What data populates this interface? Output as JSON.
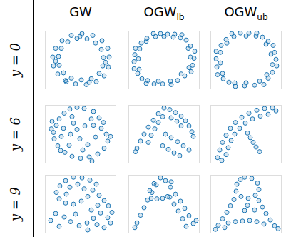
{
  "columns": [
    {
      "text": "GW"
    },
    {
      "text": "OGW",
      "subscript": "lb"
    },
    {
      "text": "OGW",
      "subscript": "ub"
    }
  ],
  "rows": [
    "y = 0",
    "y = 6",
    "y = 9"
  ],
  "chart_data": [
    {
      "type": "scatter",
      "color": "#1f77b4",
      "marker": "circle",
      "grid": false,
      "tick_labels": false,
      "xlim": [
        0,
        10
      ],
      "ylim": [
        0,
        10
      ],
      "x": [
        9.0,
        8.8,
        8.0,
        6.7,
        5.2,
        3.7,
        2.4,
        1.5,
        1.1,
        1.2,
        1.8,
        2.9,
        4.3,
        5.8,
        7.2,
        8.3,
        8.9,
        8.2,
        7.9,
        7.1,
        5.9,
        4.5,
        3.2,
        2.3,
        1.9,
        2.0,
        2.6,
        3.7,
        5.1,
        6.5,
        7.6,
        8.1,
        4.9,
        1.5,
        8.5,
        6.2,
        3.0
      ],
      "values": [
        5.5,
        7.0,
        8.3,
        9.2,
        9.5,
        9.2,
        8.3,
        7.0,
        5.5,
        4.0,
        2.6,
        1.5,
        0.9,
        0.8,
        1.3,
        2.3,
        3.8,
        5.4,
        6.8,
        7.9,
        8.6,
        8.7,
        8.1,
        7.0,
        5.6,
        4.1,
        2.8,
        1.9,
        1.6,
        1.8,
        2.7,
        4.0,
        9.0,
        4.8,
        4.6,
        1.2,
        1.3
      ]
    },
    {
      "type": "scatter",
      "color": "#1f77b4",
      "marker": "circle",
      "grid": false,
      "tick_labels": false,
      "xlim": [
        0,
        10
      ],
      "ylim": [
        0,
        10
      ],
      "x": [
        3.5,
        4.5,
        5.5,
        6.5,
        7.5,
        8.1,
        8.7,
        9.3,
        9.2,
        9.0,
        8.8,
        7.9,
        6.9,
        6.0,
        4.8,
        3.6,
        2.5,
        1.9,
        1.3,
        0.8,
        0.8,
        0.9,
        1.0,
        1.8,
        2.6,
        3.8,
        5.0,
        6.3,
        7.3,
        8.4,
        8.7,
        8.5,
        7.4,
        5.9,
        4.2,
        2.7,
        1.5,
        1.4,
        1.6,
        2.5
      ],
      "values": [
        9.5,
        9.5,
        9.4,
        9.4,
        9.3,
        8.4,
        7.4,
        6.5,
        5.3,
        4.1,
        3.0,
        2.3,
        1.5,
        0.8,
        0.9,
        0.9,
        1.0,
        1.8,
        2.7,
        3.5,
        4.7,
        5.9,
        7.0,
        7.9,
        8.7,
        9.0,
        9.0,
        8.9,
        8.8,
        7.0,
        5.5,
        3.7,
        2.6,
        1.4,
        1.4,
        1.5,
        3.4,
        5.2,
        6.9,
        8.2
      ]
    },
    {
      "type": "scatter",
      "color": "#1f77b4",
      "marker": "circle",
      "grid": false,
      "tick_labels": false,
      "xlim": [
        0,
        10
      ],
      "ylim": [
        0,
        10
      ],
      "x": [
        3.0,
        4.2,
        5.4,
        6.5,
        7.3,
        8.1,
        8.8,
        9.0,
        9.2,
        9.3,
        8.7,
        8.1,
        7.5,
        6.2,
        4.8,
        3.5,
        2.6,
        1.8,
        1.0,
        0.9,
        0.8,
        0.8,
        1.5,
        2.2,
        3.3,
        5.0,
        6.4,
        7.8,
        8.5,
        8.7,
        7.9,
        6.9,
        5.0,
        3.4,
        1.7,
        1.4,
        1.4,
        2.3
      ],
      "values": [
        9.5,
        9.6,
        9.6,
        9.6,
        8.9,
        8.2,
        7.5,
        6.3,
        5.1,
        4.0,
        2.9,
        1.9,
        0.8,
        0.7,
        0.6,
        0.5,
        1.2,
        1.8,
        2.5,
        3.8,
        5.2,
        6.5,
        7.5,
        8.5,
        9.0,
        9.1,
        9.1,
        7.7,
        6.0,
        4.2,
        2.5,
        1.4,
        1.1,
        1.1,
        2.7,
        4.5,
        6.3,
        7.9
      ]
    },
    {
      "type": "scatter",
      "color": "#1f77b4",
      "marker": "circle",
      "grid": false,
      "tick_labels": false,
      "xlim": [
        0,
        10
      ],
      "ylim": [
        0,
        10
      ],
      "x": [
        4.5,
        3.5,
        5.5,
        2.7,
        6.8,
        2.0,
        1.6,
        3.8,
        1.2,
        2.6,
        1.3,
        0.9,
        1.8,
        2.3,
        2.8,
        3.8,
        5.0,
        6.2,
        7.4,
        8.3,
        8.8,
        8.6,
        7.9,
        6.8,
        5.6,
        4.5,
        3.6,
        4.9,
        6.0,
        7.1,
        5.3,
        3.4,
        6.5,
        7.6,
        8.2,
        4.0,
        2.2,
        6.6,
        9.2,
        1.0
      ],
      "values": [
        9.6,
        9.3,
        9.4,
        8.6,
        8.9,
        7.6,
        6.5,
        8.0,
        5.3,
        6.0,
        4.2,
        5.9,
        3.0,
        4.6,
        1.9,
        1.2,
        0.9,
        1.1,
        1.6,
        2.6,
        3.8,
        5.0,
        6.0,
        6.5,
        6.4,
        5.8,
        5.0,
        4.2,
        3.2,
        4.5,
        2.3,
        3.1,
        7.6,
        7.8,
        7.0,
        6.9,
        2.2,
        0.4,
        4.6,
        7.2
      ]
    },
    {
      "type": "scatter",
      "color": "#1f77b4",
      "marker": "circle",
      "grid": false,
      "tick_labels": false,
      "xlim": [
        0,
        10
      ],
      "ylim": [
        0,
        10
      ],
      "x": [
        5.0,
        4.2,
        3.5,
        2.8,
        2.2,
        1.7,
        1.2,
        1.0,
        5.8,
        6.6,
        7.4,
        8.0,
        8.5,
        8.9,
        9.1,
        4.8,
        4.2,
        3.7,
        3.2,
        2.8,
        5.2,
        6.0,
        6.9,
        7.7,
        8.5,
        4.8,
        5.6,
        6.4,
        7.2,
        6.0,
        6.8,
        7.4
      ],
      "values": [
        9.5,
        8.5,
        7.4,
        6.2,
        5.0,
        3.8,
        2.6,
        2.0,
        9.2,
        8.7,
        8.1,
        7.3,
        6.4,
        5.4,
        4.6,
        8.0,
        7.0,
        5.9,
        4.8,
        3.6,
        5.0,
        4.4,
        3.7,
        3.0,
        2.3,
        3.0,
        2.4,
        1.8,
        1.3,
        7.8,
        7.2,
        6.4
      ]
    },
    {
      "type": "scatter",
      "color": "#1f77b4",
      "marker": "circle",
      "grid": false,
      "tick_labels": false,
      "xlim": [
        0,
        10
      ],
      "ylim": [
        0,
        10
      ],
      "x": [
        1.0,
        1.3,
        1.7,
        2.2,
        2.8,
        3.5,
        4.4,
        5.4,
        6.5,
        7.6,
        8.7,
        2.2,
        2.5,
        2.9,
        3.4,
        4.1,
        4.9,
        5.9,
        7.0,
        8.1,
        5.2,
        5.6,
        6.0,
        6.4,
        6.9,
        9.2,
        1.6
      ],
      "values": [
        1.0,
        2.3,
        3.6,
        4.8,
        6.0,
        7.0,
        7.9,
        8.6,
        9.1,
        9.4,
        9.5,
        1.5,
        2.7,
        3.9,
        5.0,
        6.0,
        6.9,
        7.6,
        8.1,
        8.4,
        5.2,
        4.4,
        3.6,
        2.8,
        2.0,
        9.0,
        0.5
      ]
    },
    {
      "type": "scatter",
      "color": "#1f77b4",
      "marker": "circle",
      "grid": false,
      "tick_labels": false,
      "xlim": [
        0,
        10
      ],
      "ylim": [
        0,
        10
      ],
      "x": [
        4.0,
        5.2,
        6.3,
        2.9,
        2.1,
        1.6,
        2.0,
        2.9,
        4.0,
        5.1,
        6.0,
        6.7,
        7.2,
        3.5,
        4.6,
        5.5,
        3.0,
        7.6,
        8.3,
        8.9,
        7.4,
        6.5,
        7.8,
        8.8,
        6.8,
        5.9,
        7.3,
        8.3,
        9.2,
        4.8,
        3.6,
        2.7,
        1.5,
        0.8,
        4.3,
        2.0,
        9.4,
        6.0
      ],
      "values": [
        9.6,
        9.5,
        9.1,
        9.0,
        8.1,
        7.0,
        5.9,
        5.2,
        5.0,
        5.5,
        6.3,
        7.4,
        8.4,
        7.9,
        8.4,
        7.6,
        6.7,
        6.5,
        5.6,
        4.7,
        4.8,
        4.0,
        3.5,
        2.7,
        2.6,
        1.8,
        1.5,
        1.0,
        1.8,
        1.3,
        2.0,
        2.8,
        3.4,
        2.2,
        3.3,
        1.2,
        3.6,
        0.6
      ]
    },
    {
      "type": "scatter",
      "color": "#1f77b4",
      "marker": "circle",
      "grid": false,
      "tick_labels": false,
      "xlim": [
        0,
        10
      ],
      "ylim": [
        0,
        10
      ],
      "x": [
        4.5,
        3.9,
        3.3,
        2.7,
        2.2,
        1.7,
        1.2,
        0.9,
        5.2,
        5.9,
        6.6,
        7.3,
        7.9,
        8.5,
        9.1,
        5.8,
        6.4,
        7.0,
        7.6,
        8.1,
        3.2,
        4.0,
        4.8,
        5.5,
        3.6,
        3.0,
        9.5,
        6.0
      ],
      "values": [
        9.5,
        8.3,
        7.0,
        5.7,
        4.4,
        3.1,
        1.8,
        1.0,
        9.0,
        7.9,
        6.7,
        5.5,
        4.3,
        3.0,
        1.7,
        6.2,
        5.0,
        3.8,
        2.5,
        1.2,
        6.0,
        5.9,
        6.0,
        6.3,
        8.5,
        7.3,
        2.2,
        8.8
      ]
    },
    {
      "type": "scatter",
      "color": "#1f77b4",
      "marker": "circle",
      "grid": false,
      "tick_labels": false,
      "xlim": [
        0,
        10
      ],
      "ylim": [
        0,
        10
      ],
      "x": [
        4.8,
        5.8,
        6.6,
        6.8,
        6.3,
        5.3,
        4.3,
        3.6,
        3.7,
        4.2,
        3.3,
        2.8,
        2.3,
        1.7,
        1.1,
        0.7,
        6.8,
        7.3,
        7.8,
        8.4,
        9.0,
        9.5,
        2.5,
        3.5,
        4.5,
        5.5,
        6.5,
        7.5,
        5.2,
        4.8,
        6.2,
        2.0
      ],
      "values": [
        9.6,
        9.4,
        8.6,
        7.5,
        6.5,
        6.0,
        6.3,
        7.2,
        8.4,
        9.2,
        5.8,
        4.7,
        3.6,
        2.5,
        1.4,
        0.7,
        5.6,
        4.5,
        3.4,
        2.3,
        1.3,
        0.8,
        1.8,
        2.0,
        2.1,
        2.2,
        2.0,
        1.6,
        4.8,
        3.9,
        4.0,
        1.0
      ]
    }
  ]
}
